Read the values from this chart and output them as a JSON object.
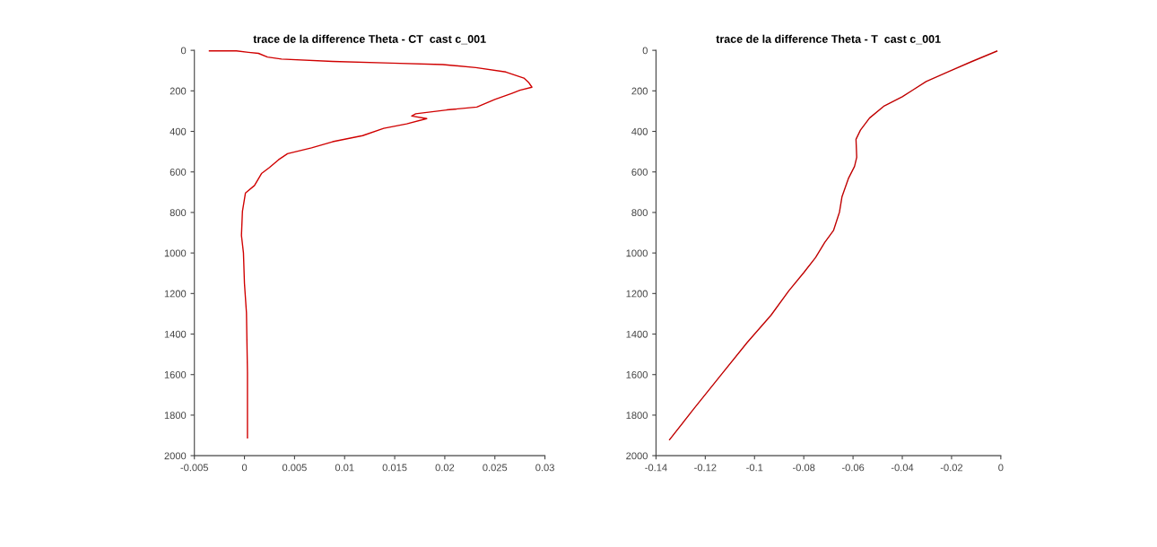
{
  "chart_data": [
    {
      "type": "line",
      "title": "trace de la difference Theta - CT  cast c_001",
      "xlim": [
        -0.005,
        0.03
      ],
      "xticks": [
        -0.005,
        0,
        0.005,
        0.01,
        0.015,
        0.02,
        0.025,
        0.03
      ],
      "ylim": [
        2000,
        0
      ],
      "yticks": [
        0,
        200,
        400,
        600,
        800,
        1000,
        1200,
        1400,
        1600,
        1800,
        2000
      ],
      "grid": false,
      "series": [
        {
          "color": "#d00000",
          "x": [
            -0.0035,
            -0.0008,
            0.0004,
            0.0014,
            0.0023,
            0.0037,
            0.0088,
            0.0147,
            0.0198,
            0.0231,
            0.0261,
            0.0279,
            0.0284,
            0.0287,
            0.0275,
            0.0267,
            0.025,
            0.0232,
            0.0202,
            0.0171,
            0.0167,
            0.0182,
            0.0162,
            0.0139,
            0.0118,
            0.0088,
            0.0067,
            0.0043,
            0.0034,
            0.0025,
            0.0017,
            0.001,
            0.0001,
            -0.0002,
            -0.0003,
            -0.0001,
            0.0,
            0.0002,
            0.0003,
            0.0003
          ],
          "values": [
            3,
            3,
            10,
            15,
            33,
            43,
            55,
            63,
            70,
            85,
            107,
            137,
            160,
            182,
            197,
            212,
            242,
            280,
            294,
            313,
            324,
            337,
            363,
            385,
            421,
            451,
            481,
            510,
            540,
            578,
            608,
            667,
            704,
            794,
            913,
            1000,
            1150,
            1296,
            1590,
            1912
          ]
        }
      ]
    },
    {
      "type": "line",
      "title": "trace de la difference Theta - T  cast c_001",
      "xlim": [
        -0.14,
        0
      ],
      "xticks": [
        -0.14,
        -0.12,
        -0.1,
        -0.08,
        -0.06,
        -0.04,
        -0.02,
        0
      ],
      "ylim": [
        2000,
        0
      ],
      "yticks": [
        0,
        200,
        400,
        600,
        800,
        1000,
        1200,
        1400,
        1600,
        1800,
        2000
      ],
      "grid": false,
      "series": [
        {
          "color": "#c00000",
          "x": [
            -0.0016,
            -0.0121,
            -0.0206,
            -0.0303,
            -0.04,
            -0.0473,
            -0.0533,
            -0.057,
            -0.0588,
            -0.0585,
            -0.0594,
            -0.0619,
            -0.0645,
            -0.0655,
            -0.0679,
            -0.0715,
            -0.0752,
            -0.08,
            -0.0861,
            -0.0933,
            -0.103,
            -0.1139,
            -0.1248,
            -0.1345
          ],
          "values": [
            4,
            57,
            102,
            154,
            229,
            274,
            334,
            394,
            439,
            528,
            573,
            633,
            723,
            798,
            888,
            948,
            1022,
            1097,
            1187,
            1307,
            1442,
            1606,
            1771,
            1921
          ]
        }
      ]
    }
  ]
}
